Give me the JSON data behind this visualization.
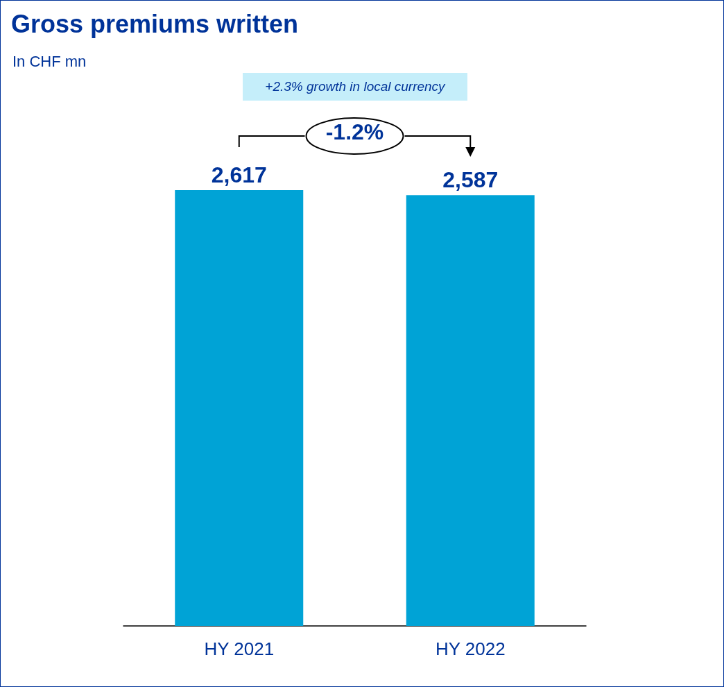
{
  "chart_data": {
    "type": "bar",
    "title": "Gross premiums written",
    "subtitle": "In CHF mn",
    "categories": [
      "HY 2021",
      "HY 2022"
    ],
    "values": [
      2617,
      2587
    ],
    "value_labels": [
      "2,617",
      "2,587"
    ],
    "color": "#00a3d6",
    "grid": false,
    "annotations": [
      "+2.3% growth in local currency",
      "-1.2%"
    ]
  }
}
